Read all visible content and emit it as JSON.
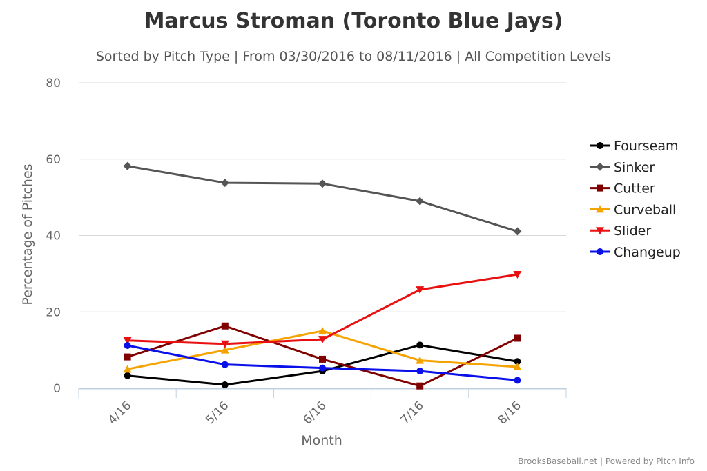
{
  "chart_data": {
    "type": "line",
    "title": "Marcus Stroman (Toronto Blue Jays)",
    "subtitle": "Sorted by Pitch Type | From 03/30/2016 to 08/11/2016 | All Competition Levels",
    "xlabel": "Month",
    "ylabel": "Percentage of Pitches",
    "categories": [
      "4/16",
      "5/16",
      "6/16",
      "7/16",
      "8/16"
    ],
    "ylim": [
      0,
      80
    ],
    "yticks": [
      0,
      20,
      40,
      60,
      80
    ],
    "grid": true,
    "legend_position": "right",
    "series": [
      {
        "name": "Fourseam",
        "color": "#000000",
        "marker": "circle",
        "values": [
          3.3,
          0.9,
          4.5,
          11.3,
          7.0
        ]
      },
      {
        "name": "Sinker",
        "color": "#555555",
        "marker": "diamond",
        "values": [
          58.2,
          53.8,
          53.6,
          49.0,
          41.1
        ]
      },
      {
        "name": "Cutter",
        "color": "#800000",
        "marker": "square",
        "values": [
          8.2,
          16.3,
          7.6,
          0.6,
          13.1
        ]
      },
      {
        "name": "Curveball",
        "color": "#f5a300",
        "marker": "triangle",
        "values": [
          5.0,
          10.0,
          15.0,
          7.3,
          5.6
        ]
      },
      {
        "name": "Slider",
        "color": "#e81010",
        "marker": "triangle-down",
        "values": [
          12.5,
          11.6,
          12.8,
          25.8,
          29.8
        ]
      },
      {
        "name": "Changeup",
        "color": "#0a10e8",
        "marker": "circle",
        "values": [
          11.2,
          6.2,
          5.3,
          4.5,
          2.1
        ]
      }
    ]
  },
  "credits": "BrooksBaseball.net | Powered by Pitch Info"
}
